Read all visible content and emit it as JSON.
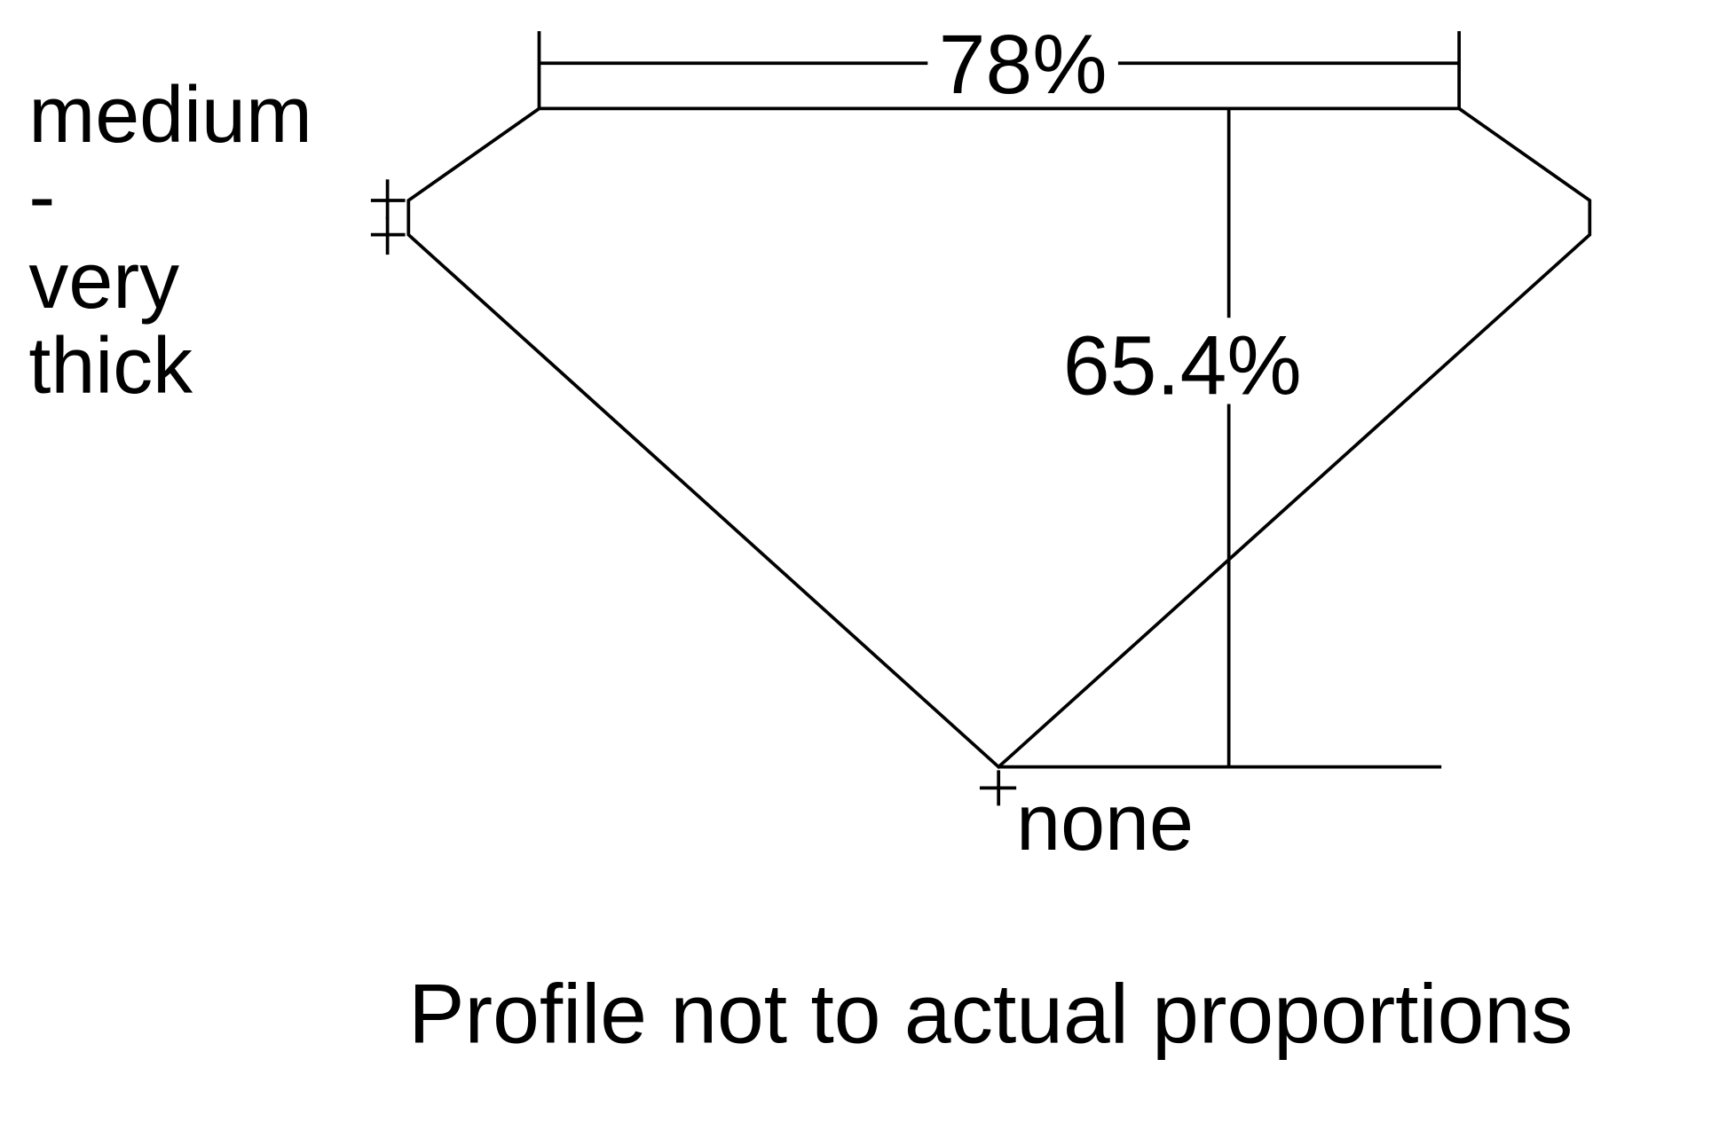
{
  "diagram": {
    "table_width_label": "78%",
    "depth_label": "65.4%",
    "girdle_label_lines": [
      "medium",
      "-",
      "very",
      "thick"
    ],
    "culet_label": "none",
    "footnote": "Profile not to actual proportions",
    "line_color": "#000000",
    "background_color": "#ffffff"
  }
}
